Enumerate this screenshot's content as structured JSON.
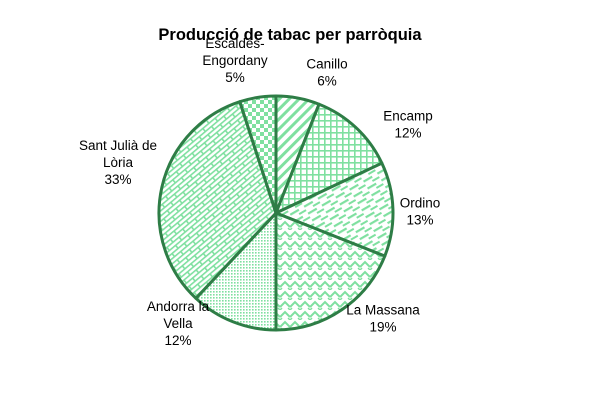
{
  "chart_data": {
    "type": "pie",
    "title": "Producció de tabac per parròquia",
    "slices": [
      {
        "label": [
          "Canillo"
        ],
        "value_label": "6%",
        "value": 6,
        "pattern": "diag"
      },
      {
        "label": [
          "Encamp"
        ],
        "value_label": "12%",
        "value": 12,
        "pattern": "grid"
      },
      {
        "label": [
          "Ordino"
        ],
        "value_label": "13%",
        "value": 13,
        "pattern": "dash"
      },
      {
        "label": [
          "La Massana"
        ],
        "value_label": "19%",
        "value": 19,
        "pattern": "zigzag"
      },
      {
        "label": [
          "Andorra la",
          "Vella"
        ],
        "value_label": "12%",
        "value": 12,
        "pattern": "dots"
      },
      {
        "label": [
          "Sant Julià de",
          "Lòria"
        ],
        "value_label": "33%",
        "value": 33,
        "pattern": "brick"
      },
      {
        "label": [
          "Escaldes-",
          "Engordany"
        ],
        "value_label": "5%",
        "value": 5,
        "pattern": "checker"
      }
    ],
    "start_angle_deg": 0,
    "colors": {
      "stroke": "#2e7d46",
      "pattern": "#7fe0a0",
      "background": "#ffffff"
    }
  }
}
